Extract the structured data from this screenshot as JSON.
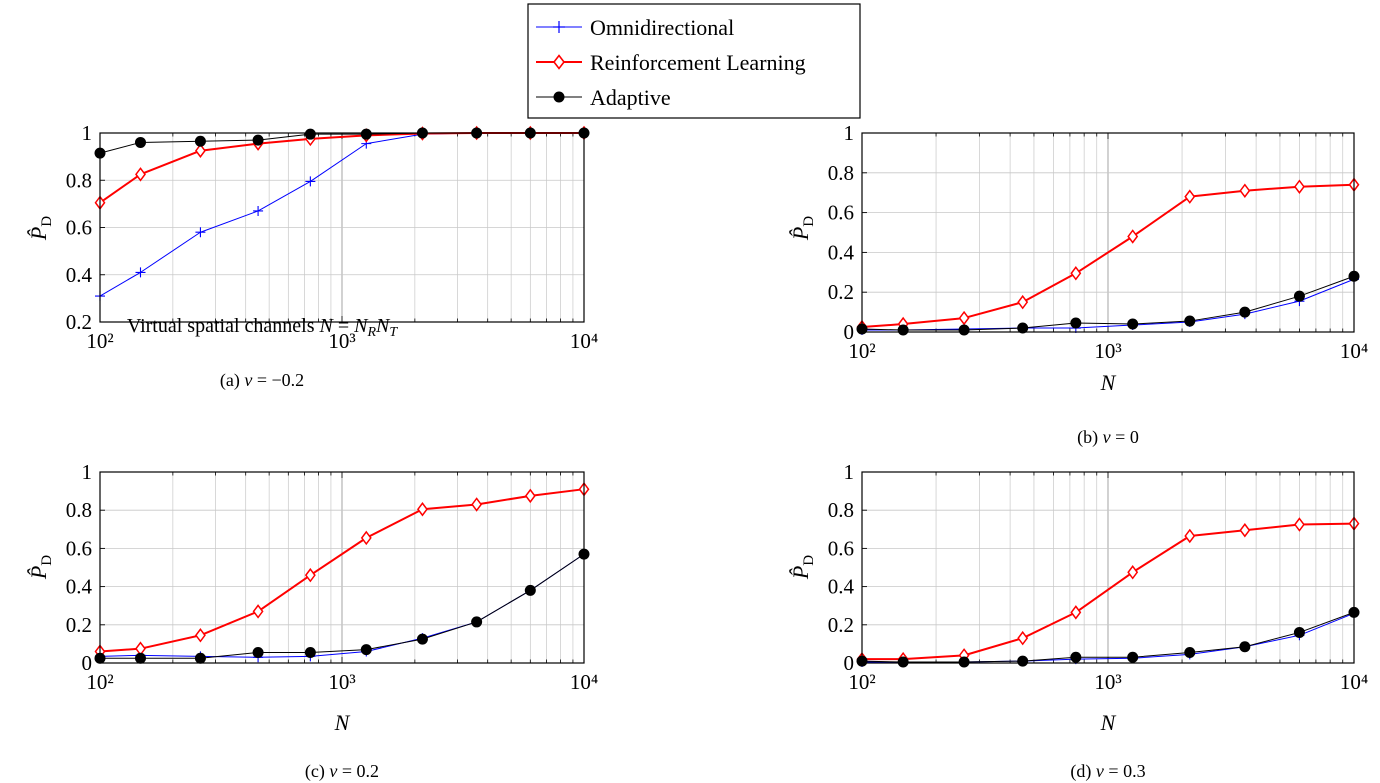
{
  "legend": {
    "placement": "top-center",
    "entries": [
      {
        "name": "Omnidirectional",
        "color": "#0000ff",
        "marker": "plus"
      },
      {
        "name": "Reinforcement Learning",
        "color": "#ff0000",
        "marker": "diamond"
      },
      {
        "name": "Adaptive",
        "color": "#000000",
        "marker": "filled-circle"
      }
    ]
  },
  "chart_data": [
    {
      "type": "line",
      "caption": "(a) ν = −0.2",
      "xlabel": "Virtual spatial channels N = N_R N_T",
      "ylabel": "P̂_D",
      "xscale": "log",
      "xlim": [
        100,
        10000
      ],
      "ylim": [
        0.2,
        1
      ],
      "yticks": [
        "0.2",
        "0.4",
        "0.6",
        "0.8",
        "1"
      ],
      "ytick_values": [
        0.2,
        0.4,
        0.6,
        0.8,
        1
      ],
      "xticks": [
        "10²",
        "10³",
        "10⁴"
      ],
      "xtick_values": [
        100,
        1000,
        10000
      ],
      "grid": true,
      "x": [
        100,
        147,
        260,
        450,
        740,
        1260,
        2150,
        3600,
        6000,
        10000
      ],
      "series": [
        {
          "name": "Omnidirectional",
          "values": [
            0.31,
            0.41,
            0.58,
            0.67,
            0.795,
            0.955,
            0.995,
            1.0,
            1.0,
            1.0
          ]
        },
        {
          "name": "Reinforcement Learning",
          "values": [
            0.705,
            0.825,
            0.925,
            0.955,
            0.975,
            0.99,
            0.998,
            1.0,
            1.0,
            1.0
          ]
        },
        {
          "name": "Adaptive",
          "values": [
            0.915,
            0.96,
            0.965,
            0.97,
            0.995,
            0.995,
            1.0,
            1.0,
            1.0,
            1.0
          ]
        }
      ]
    },
    {
      "type": "line",
      "caption": "(b) ν = 0",
      "xlabel": "N",
      "ylabel": "P̂_D",
      "xscale": "log",
      "xlim": [
        100,
        10000
      ],
      "ylim": [
        0,
        1
      ],
      "yticks": [
        "0",
        "0.2",
        "0.4",
        "0.6",
        "0.8",
        "1"
      ],
      "ytick_values": [
        0,
        0.2,
        0.4,
        0.6,
        0.8,
        1
      ],
      "xticks": [
        "10²",
        "10³",
        "10⁴"
      ],
      "xtick_values": [
        100,
        1000,
        10000
      ],
      "grid": true,
      "x": [
        100,
        147,
        260,
        450,
        740,
        1260,
        2150,
        3600,
        6000,
        10000
      ],
      "series": [
        {
          "name": "Omnidirectional",
          "values": [
            0.01,
            0.01,
            0.015,
            0.02,
            0.02,
            0.035,
            0.05,
            0.09,
            0.155,
            0.265
          ]
        },
        {
          "name": "Reinforcement Learning",
          "values": [
            0.025,
            0.04,
            0.07,
            0.15,
            0.295,
            0.48,
            0.68,
            0.71,
            0.73,
            0.74
          ]
        },
        {
          "name": "Adaptive",
          "values": [
            0.015,
            0.01,
            0.01,
            0.02,
            0.045,
            0.04,
            0.055,
            0.1,
            0.18,
            0.28
          ]
        }
      ]
    },
    {
      "type": "line",
      "caption": "(c) ν = 0.2",
      "xlabel": "N",
      "ylabel": "P̂_D",
      "xscale": "log",
      "xlim": [
        100,
        10000
      ],
      "ylim": [
        0,
        1
      ],
      "yticks": [
        "0",
        "0.2",
        "0.4",
        "0.6",
        "0.8",
        "1"
      ],
      "ytick_values": [
        0,
        0.2,
        0.4,
        0.6,
        0.8,
        1
      ],
      "xticks": [
        "10²",
        "10³",
        "10⁴"
      ],
      "xtick_values": [
        100,
        1000,
        10000
      ],
      "grid": true,
      "x": [
        100,
        147,
        260,
        450,
        740,
        1260,
        2150,
        3600,
        6000,
        10000
      ],
      "series": [
        {
          "name": "Omnidirectional",
          "values": [
            0.035,
            0.04,
            0.035,
            0.03,
            0.035,
            0.06,
            0.13,
            0.215,
            0.38,
            0.57
          ]
        },
        {
          "name": "Reinforcement Learning",
          "values": [
            0.06,
            0.075,
            0.145,
            0.27,
            0.46,
            0.655,
            0.805,
            0.83,
            0.875,
            0.91
          ]
        },
        {
          "name": "Adaptive",
          "values": [
            0.025,
            0.025,
            0.025,
            0.055,
            0.055,
            0.07,
            0.125,
            0.215,
            0.38,
            0.57
          ]
        }
      ]
    },
    {
      "type": "line",
      "caption": "(d) ν = 0.3",
      "xlabel": "N",
      "ylabel": "P̂_D",
      "xscale": "log",
      "xlim": [
        100,
        10000
      ],
      "ylim": [
        0,
        1
      ],
      "yticks": [
        "0",
        "0.2",
        "0.4",
        "0.6",
        "0.8",
        "1"
      ],
      "ytick_values": [
        0,
        0.2,
        0.4,
        0.6,
        0.8,
        1
      ],
      "xticks": [
        "10²",
        "10³",
        "10⁴"
      ],
      "xtick_values": [
        100,
        1000,
        10000
      ],
      "grid": true,
      "x": [
        100,
        147,
        260,
        450,
        740,
        1260,
        2150,
        3600,
        6000,
        10000
      ],
      "series": [
        {
          "name": "Omnidirectional",
          "values": [
            0.005,
            0.005,
            0.005,
            0.01,
            0.02,
            0.025,
            0.045,
            0.085,
            0.145,
            0.26
          ]
        },
        {
          "name": "Reinforcement Learning",
          "values": [
            0.02,
            0.02,
            0.04,
            0.13,
            0.265,
            0.475,
            0.665,
            0.695,
            0.725,
            0.73
          ]
        },
        {
          "name": "Adaptive",
          "values": [
            0.01,
            0.005,
            0.005,
            0.01,
            0.03,
            0.03,
            0.055,
            0.085,
            0.16,
            0.265
          ]
        }
      ]
    }
  ]
}
